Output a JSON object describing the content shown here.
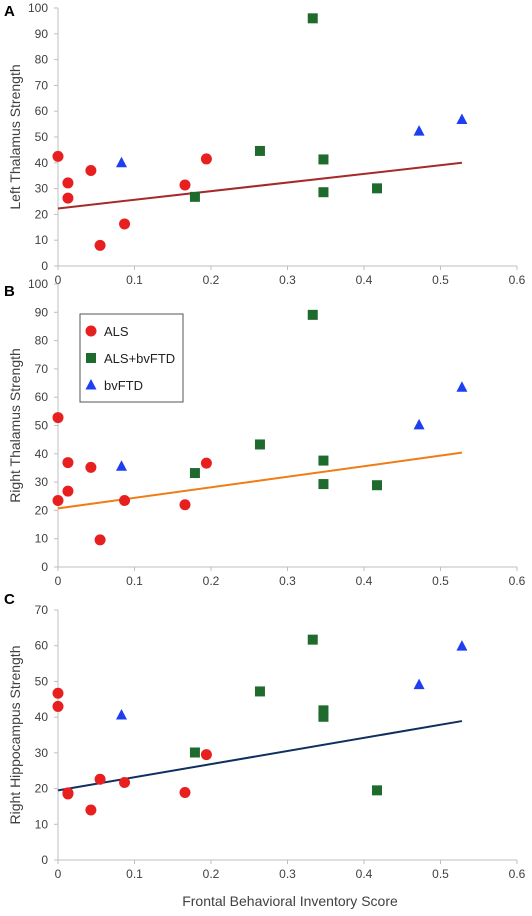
{
  "colors": {
    "ALS": "#e81f1f",
    "ALS+bvFTD": "#1f6b2e",
    "bvFTD": "#1d3ff0",
    "axis": "#bfbfbf"
  },
  "legend": [
    {
      "label": "ALS",
      "marker": "circle"
    },
    {
      "label": "ALS+bvFTD",
      "marker": "square"
    },
    {
      "label": "bvFTD",
      "marker": "triangle"
    }
  ],
  "chart_data": [
    {
      "panel": "A",
      "type": "scatter",
      "ylabel": "Left Thalamus Strength",
      "xlabel": "",
      "xlim": [
        0,
        0.6
      ],
      "ylim": [
        0,
        100
      ],
      "xticks": [
        0,
        0.1,
        0.2,
        0.3,
        0.4,
        0.5,
        0.6
      ],
      "yticks": [
        0,
        10,
        20,
        30,
        40,
        50,
        60,
        70,
        80,
        90,
        100
      ],
      "grid": false,
      "legend": false,
      "trendline": {
        "x": [
          0,
          0.528
        ],
        "y": [
          22.3,
          40
        ],
        "color": "#a52a2a"
      },
      "series": [
        {
          "name": "ALS",
          "points": [
            [
              0,
              42.5
            ],
            [
              0.013,
              32.2
            ],
            [
              0.013,
              26.3
            ],
            [
              0.043,
              37
            ],
            [
              0.055,
              8
            ],
            [
              0.087,
              16.3
            ],
            [
              0.166,
              31.4
            ],
            [
              0.194,
              41.5
            ]
          ]
        },
        {
          "name": "ALS+bvFTD",
          "points": [
            [
              0.179,
              26.8
            ],
            [
              0.264,
              44.6
            ],
            [
              0.333,
              96
            ],
            [
              0.347,
              41.3
            ],
            [
              0.347,
              28.6
            ],
            [
              0.417,
              30.1
            ]
          ]
        },
        {
          "name": "bvFTD",
          "points": [
            [
              0.083,
              40
            ],
            [
              0.472,
              52.3
            ],
            [
              0.528,
              56.8
            ]
          ]
        }
      ]
    },
    {
      "panel": "B",
      "type": "scatter",
      "ylabel": "Right Thalamus Strength",
      "xlabel": "",
      "xlim": [
        0,
        0.6
      ],
      "ylim": [
        0,
        100
      ],
      "xticks": [
        0,
        0.1,
        0.2,
        0.3,
        0.4,
        0.5,
        0.6
      ],
      "yticks": [
        0,
        10,
        20,
        30,
        40,
        50,
        60,
        70,
        80,
        90,
        100
      ],
      "grid": false,
      "legend": "top-left",
      "trendline": {
        "x": [
          0,
          0.528
        ],
        "y": [
          20.7,
          40.4
        ],
        "color": "#f07d14"
      },
      "series": [
        {
          "name": "ALS",
          "points": [
            [
              0,
              52.8
            ],
            [
              0,
              23.5
            ],
            [
              0.013,
              36.9
            ],
            [
              0.013,
              26.8
            ],
            [
              0.043,
              35.2
            ],
            [
              0.055,
              9.6
            ],
            [
              0.087,
              23.5
            ],
            [
              0.166,
              22
            ],
            [
              0.194,
              36.7
            ]
          ]
        },
        {
          "name": "ALS+bvFTD",
          "points": [
            [
              0.179,
              33.2
            ],
            [
              0.264,
              43.3
            ],
            [
              0.333,
              89.1
            ],
            [
              0.347,
              37.6
            ],
            [
              0.347,
              29.3
            ],
            [
              0.417,
              28.9
            ]
          ]
        },
        {
          "name": "bvFTD",
          "points": [
            [
              0.083,
              35.6
            ],
            [
              0.472,
              50.2
            ],
            [
              0.528,
              63.5
            ]
          ]
        }
      ]
    },
    {
      "panel": "C",
      "type": "scatter",
      "ylabel": "Right Hippocampus Strength",
      "xlabel": "Frontal Behavioral Inventory Score",
      "xlim": [
        0,
        0.6
      ],
      "ylim": [
        0,
        70
      ],
      "xticks": [
        0,
        0.1,
        0.2,
        0.3,
        0.4,
        0.5,
        0.6
      ],
      "yticks": [
        0,
        10,
        20,
        30,
        40,
        50,
        60,
        70
      ],
      "grid": false,
      "legend": false,
      "trendline": {
        "x": [
          0,
          0.528
        ],
        "y": [
          19.5,
          38.9
        ],
        "color": "#0f2f5f"
      },
      "series": [
        {
          "name": "ALS",
          "points": [
            [
              0,
              46.7
            ],
            [
              0,
              43
            ],
            [
              0.013,
              18.8
            ],
            [
              0.013,
              18.5
            ],
            [
              0.043,
              14
            ],
            [
              0.055,
              22.6
            ],
            [
              0.087,
              21.7
            ],
            [
              0.166,
              18.9
            ],
            [
              0.194,
              29.5
            ]
          ]
        },
        {
          "name": "ALS+bvFTD",
          "points": [
            [
              0.179,
              30.1
            ],
            [
              0.264,
              47.2
            ],
            [
              0.333,
              61.7
            ],
            [
              0.347,
              41.9
            ],
            [
              0.347,
              40.1
            ],
            [
              0.417,
              19.5
            ]
          ]
        },
        {
          "name": "bvFTD",
          "points": [
            [
              0.083,
              40.6
            ],
            [
              0.472,
              49.1
            ],
            [
              0.528,
              59.9
            ]
          ]
        }
      ]
    }
  ]
}
